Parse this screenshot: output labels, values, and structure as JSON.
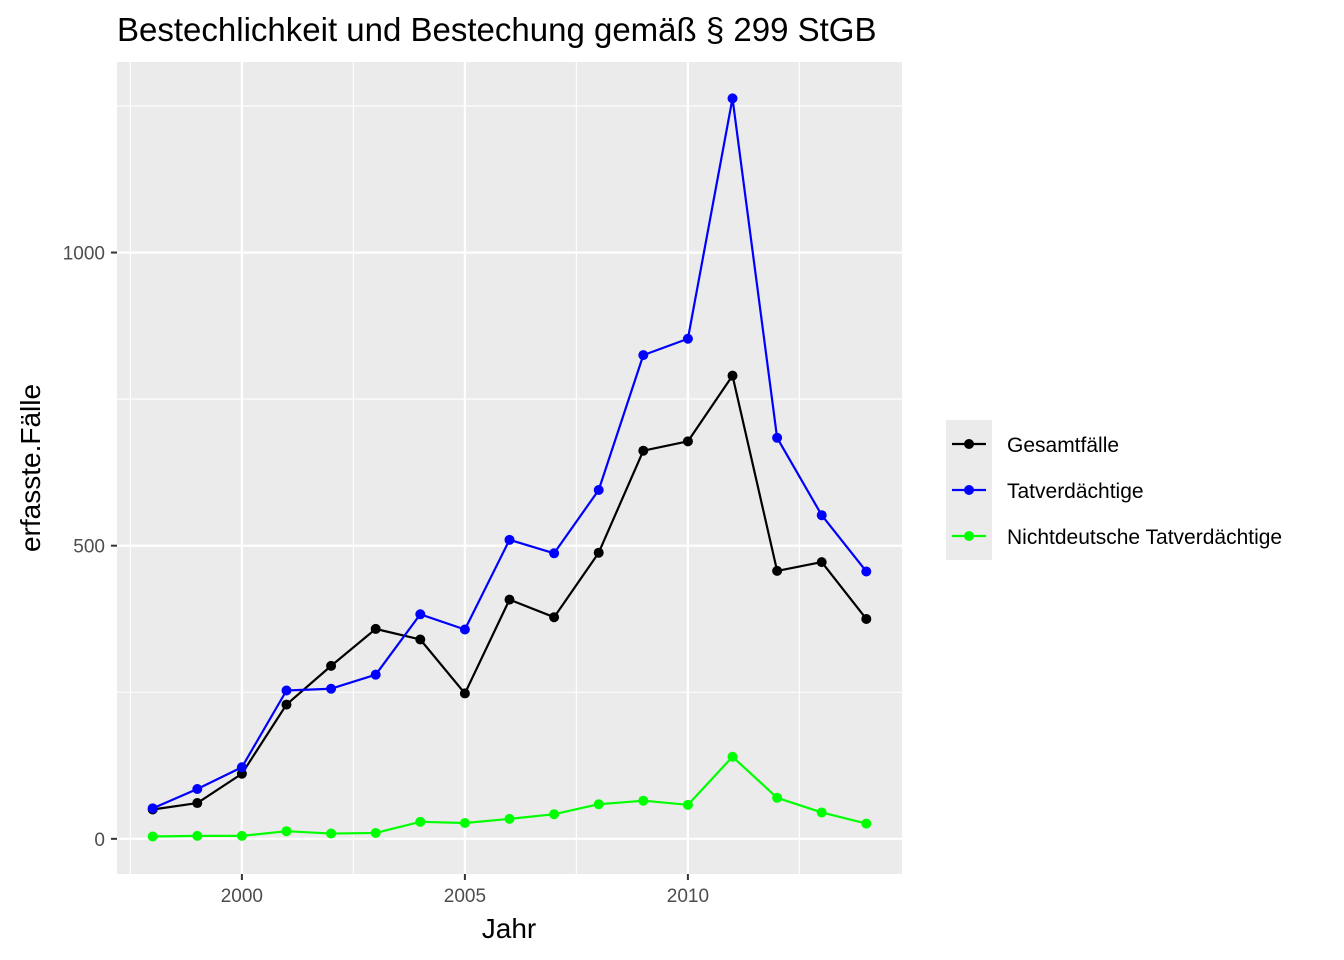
{
  "chart_data": {
    "type": "line",
    "title": "Bestechlichkeit und Bestechung gemäß § 299 StGB",
    "xlabel": "Jahr",
    "ylabel": "erfasste.Fälle",
    "x": [
      1998,
      1999,
      2000,
      2001,
      2002,
      2003,
      2004,
      2005,
      2006,
      2007,
      2008,
      2009,
      2010,
      2011,
      2012,
      2013,
      2014
    ],
    "series": [
      {
        "name": "Gesamtfälle",
        "color": "#000000",
        "values": [
          50,
          61,
          111,
          229,
          295,
          358,
          340,
          248,
          408,
          378,
          488,
          662,
          678,
          790,
          457,
          472,
          375
        ]
      },
      {
        "name": "Tatverdächtige",
        "color": "#0000ff",
        "values": [
          52,
          85,
          122,
          253,
          256,
          280,
          383,
          357,
          510,
          487,
          595,
          825,
          853,
          1263,
          684,
          552,
          456
        ]
      },
      {
        "name": "Nichtdeutsche Tatverdächtige",
        "color": "#00ff00",
        "values": [
          4,
          5,
          5,
          13,
          9,
          10,
          29,
          27,
          34,
          42,
          59,
          65,
          58,
          140,
          70,
          45,
          26
        ]
      }
    ],
    "xticks": [
      2000,
      2005,
      2010
    ],
    "yticks": [
      0,
      500,
      1000
    ],
    "xlim": [
      1997.2,
      2014.8
    ],
    "ylim": [
      -60,
      1325
    ],
    "grid": true,
    "legend_position": "right",
    "panel_background": "#ebebeb"
  }
}
